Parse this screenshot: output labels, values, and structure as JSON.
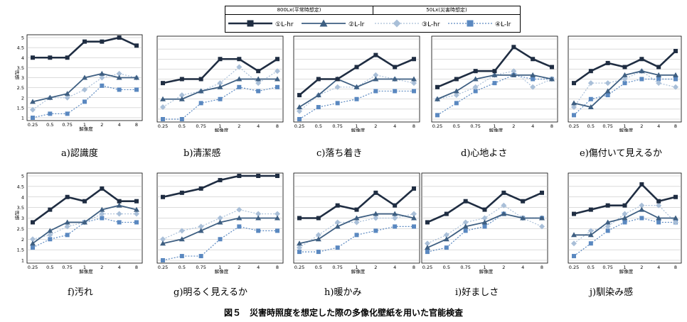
{
  "legend": {
    "group1": "800Lx(平常時想定)",
    "group2": "50Lx(災害時想定)",
    "items": [
      {
        "label": "①L-hr",
        "color": "#1f2d42",
        "marker": "square",
        "dash": "solid",
        "width": 2.6
      },
      {
        "label": "②L-lr",
        "color": "#3e5f82",
        "marker": "triangle",
        "dash": "solid",
        "width": 1.8
      },
      {
        "label": "③L-hr",
        "color": "#a9bfd8",
        "marker": "diamond",
        "dash": "dot",
        "width": 1.2
      },
      {
        "label": "④L-lr",
        "color": "#5a88c0",
        "marker": "square",
        "dash": "dot",
        "width": 1.2
      }
    ]
  },
  "figure_caption": "図５　災害時照度を想定した際の多像化壁紙を用いた官能検査",
  "chart_data": [
    {
      "type": "line",
      "caption": "a)認識度",
      "xlabel": "解像度",
      "ylabel": "評価",
      "categories": [
        "0.25",
        "0.5",
        "0.75",
        "1",
        "2",
        "4",
        "8"
      ],
      "ylim": [
        1,
        5
      ],
      "yticks": [
        "1",
        "1.5",
        "2",
        "2.5",
        "3",
        "3.5",
        "4",
        "4.5",
        "5"
      ],
      "grid": true,
      "series": [
        {
          "name": "①L-hr",
          "values": [
            4,
            4,
            4,
            4.8,
            4.8,
            5,
            4.6
          ]
        },
        {
          "name": "②L-lr",
          "values": [
            1.8,
            2,
            2.2,
            3,
            3.2,
            3,
            3
          ]
        },
        {
          "name": "③L-hr",
          "values": [
            1.4,
            2,
            2,
            2.4,
            3,
            3.2,
            3
          ]
        },
        {
          "name": "④L-lr",
          "values": [
            1,
            1.2,
            1.2,
            1.8,
            2.6,
            2.4,
            2.4
          ]
        }
      ]
    },
    {
      "type": "line",
      "caption": "b)清潔感",
      "xlabel": "解像度",
      "ylabel": "",
      "categories": [
        "0.25",
        "0.5",
        "0.75",
        "1",
        "2",
        "4",
        "8"
      ],
      "ylim": [
        1,
        5
      ],
      "yticks": [],
      "grid": true,
      "series": [
        {
          "name": "①L-hr",
          "values": [
            2.8,
            3,
            3,
            4,
            4,
            3.4,
            4
          ]
        },
        {
          "name": "②L-lr",
          "values": [
            2,
            2,
            2.4,
            2.6,
            3,
            3,
            3
          ]
        },
        {
          "name": "③L-hr",
          "values": [
            1.6,
            2.2,
            2.4,
            2.8,
            3.6,
            2.8,
            3.4
          ]
        },
        {
          "name": "④L-lr",
          "values": [
            1,
            1,
            1.8,
            2,
            2.6,
            2.4,
            2.6
          ]
        }
      ]
    },
    {
      "type": "line",
      "caption": "c)落ち着き",
      "xlabel": "解像度",
      "ylabel": "",
      "categories": [
        "0.25",
        "0.5",
        "0.75",
        "1",
        "2",
        "4",
        "8"
      ],
      "ylim": [
        1,
        5
      ],
      "yticks": [],
      "grid": true,
      "series": [
        {
          "name": "①L-hr",
          "values": [
            2.2,
            3,
            3,
            3.6,
            4.2,
            3.6,
            4
          ]
        },
        {
          "name": "②L-lr",
          "values": [
            1.6,
            2.2,
            3,
            2.6,
            3,
            3,
            3
          ]
        },
        {
          "name": "③L-hr",
          "values": [
            1.4,
            2.2,
            2.6,
            2.6,
            3.2,
            3,
            2.8
          ]
        },
        {
          "name": "④L-lr",
          "values": [
            1,
            1.6,
            1.8,
            2,
            2.4,
            2.4,
            2.4
          ]
        }
      ]
    },
    {
      "type": "line",
      "caption": "d)心地よさ",
      "xlabel": "解像度",
      "ylabel": "",
      "categories": [
        "0.25",
        "0.5",
        "0.75",
        "1",
        "2",
        "4",
        "8"
      ],
      "ylim": [
        1,
        5
      ],
      "yticks": [],
      "grid": true,
      "series": [
        {
          "name": "①L-hr",
          "values": [
            2.6,
            3,
            3.4,
            3.4,
            4.6,
            4,
            3.6
          ]
        },
        {
          "name": "②L-lr",
          "values": [
            2,
            2.4,
            3,
            3.2,
            3.2,
            3.2,
            3
          ]
        },
        {
          "name": "③L-hr",
          "values": [
            2,
            2.2,
            2.6,
            3.2,
            3.4,
            2.6,
            3
          ]
        },
        {
          "name": "④L-lr",
          "values": [
            1.2,
            1.8,
            2.4,
            2.8,
            3.2,
            3,
            3
          ]
        }
      ]
    },
    {
      "type": "line",
      "caption": "e)傷付いて見えるか",
      "xlabel": "解像度",
      "ylabel": "",
      "categories": [
        "0.25",
        "0.5",
        "0.75",
        "1",
        "2",
        "4",
        "8"
      ],
      "ylim": [
        1,
        5
      ],
      "yticks": [],
      "grid": true,
      "series": [
        {
          "name": "①L-hr",
          "values": [
            2.8,
            3.4,
            3.8,
            3.6,
            4,
            3.6,
            4.4
          ]
        },
        {
          "name": "②L-lr",
          "values": [
            1.8,
            1.6,
            2.4,
            3.2,
            3.4,
            3.2,
            3.2
          ]
        },
        {
          "name": "③L-hr",
          "values": [
            1.6,
            2.8,
            2.8,
            3,
            3.4,
            2.8,
            2.6
          ]
        },
        {
          "name": "④L-lr",
          "values": [
            1.2,
            2,
            2.2,
            2.8,
            3,
            3,
            3
          ]
        }
      ]
    },
    {
      "type": "line",
      "caption": "f)汚れ",
      "xlabel": "解像度",
      "ylabel": "評価",
      "categories": [
        "0.25",
        "0.5",
        "0.75",
        "1",
        "2",
        "4",
        "8"
      ],
      "ylim": [
        1,
        5
      ],
      "yticks": [
        "1",
        "1.5",
        "2",
        "2.5",
        "3",
        "3.5",
        "4",
        "4.5",
        "5"
      ],
      "grid": true,
      "series": [
        {
          "name": "①L-hr",
          "values": [
            2.8,
            3.4,
            4,
            3.8,
            4.4,
            3.8,
            3.8
          ]
        },
        {
          "name": "②L-lr",
          "values": [
            1.8,
            2.4,
            2.8,
            2.8,
            3.4,
            3.6,
            3.4
          ]
        },
        {
          "name": "③L-hr",
          "values": [
            2,
            2.2,
            2.6,
            2.8,
            3.2,
            3.2,
            3.2
          ]
        },
        {
          "name": "④L-lr",
          "values": [
            1.6,
            2,
            2.2,
            2.8,
            3,
            2.8,
            2.8
          ]
        }
      ]
    },
    {
      "type": "line",
      "caption": "g)明るく見えるか",
      "xlabel": "解像度",
      "ylabel": "",
      "categories": [
        "0.25",
        "0.5",
        "0.75",
        "1",
        "2",
        "4",
        "8"
      ],
      "ylim": [
        1,
        5
      ],
      "yticks": [],
      "grid": true,
      "series": [
        {
          "name": "①L-hr",
          "values": [
            4,
            4.2,
            4.4,
            4.8,
            5,
            5,
            5
          ]
        },
        {
          "name": "②L-lr",
          "values": [
            1.8,
            2,
            2.4,
            2.8,
            3,
            3,
            3
          ]
        },
        {
          "name": "③L-hr",
          "values": [
            2,
            2.4,
            2.6,
            3,
            3.4,
            3.2,
            3.2
          ]
        },
        {
          "name": "④L-lr",
          "values": [
            1,
            1.2,
            1.2,
            2,
            2.6,
            2.4,
            2.4
          ]
        }
      ]
    },
    {
      "type": "line",
      "caption": "h)暖かみ",
      "xlabel": "解像度",
      "ylabel": "",
      "categories": [
        "0.25",
        "0.5",
        "0.75",
        "1",
        "2",
        "4",
        "8"
      ],
      "ylim": [
        1,
        5
      ],
      "yticks": [],
      "grid": true,
      "series": [
        {
          "name": "①L-hr",
          "values": [
            3,
            3,
            3.6,
            3.4,
            4.2,
            3.6,
            4.4
          ]
        },
        {
          "name": "②L-lr",
          "values": [
            1.8,
            2,
            2.6,
            3,
            3.2,
            3.2,
            3
          ]
        },
        {
          "name": "③L-hr",
          "values": [
            1.6,
            2.2,
            2.8,
            2.8,
            3,
            3,
            3.2
          ]
        },
        {
          "name": "④L-lr",
          "values": [
            1.4,
            1.4,
            1.6,
            2.2,
            2.4,
            2.6,
            2.6
          ]
        }
      ]
    },
    {
      "type": "line",
      "caption": "i)好ましさ",
      "xlabel": "解像度",
      "ylabel": "",
      "categories": [
        "0.25",
        "0.5",
        "0.75",
        "1",
        "2",
        "4",
        "8"
      ],
      "ylim": [
        1,
        5
      ],
      "yticks": [],
      "grid": true,
      "series": [
        {
          "name": "①L-hr",
          "values": [
            2.8,
            3.2,
            3.8,
            3.4,
            4.2,
            3.8,
            4.2
          ]
        },
        {
          "name": "②L-lr",
          "values": [
            1.6,
            2,
            2.6,
            2.8,
            3.2,
            3,
            3
          ]
        },
        {
          "name": "③L-hr",
          "values": [
            1.8,
            2.2,
            2.8,
            3,
            3.6,
            3,
            2.6
          ]
        },
        {
          "name": "④L-lr",
          "values": [
            1.4,
            1.6,
            2.4,
            2.6,
            3.2,
            3,
            3
          ]
        }
      ]
    },
    {
      "type": "line",
      "caption": "j)馴染み感",
      "xlabel": "解像度",
      "ylabel": "",
      "categories": [
        "0.25",
        "0.5",
        "0.75",
        "1",
        "2",
        "4",
        "8"
      ],
      "ylim": [
        1,
        5
      ],
      "yticks": [],
      "grid": true,
      "series": [
        {
          "name": "①L-hr",
          "values": [
            3.2,
            3.4,
            3.6,
            3.6,
            4.6,
            3.8,
            4
          ]
        },
        {
          "name": "②L-lr",
          "values": [
            2.2,
            2.2,
            2.8,
            3,
            3.4,
            3,
            3
          ]
        },
        {
          "name": "③L-hr",
          "values": [
            1.8,
            2.4,
            2.6,
            3.2,
            3.6,
            3.6,
            2.8
          ]
        },
        {
          "name": "④L-lr",
          "values": [
            1.2,
            1.8,
            2.4,
            2.8,
            3,
            2.8,
            2.8
          ]
        }
      ]
    }
  ]
}
